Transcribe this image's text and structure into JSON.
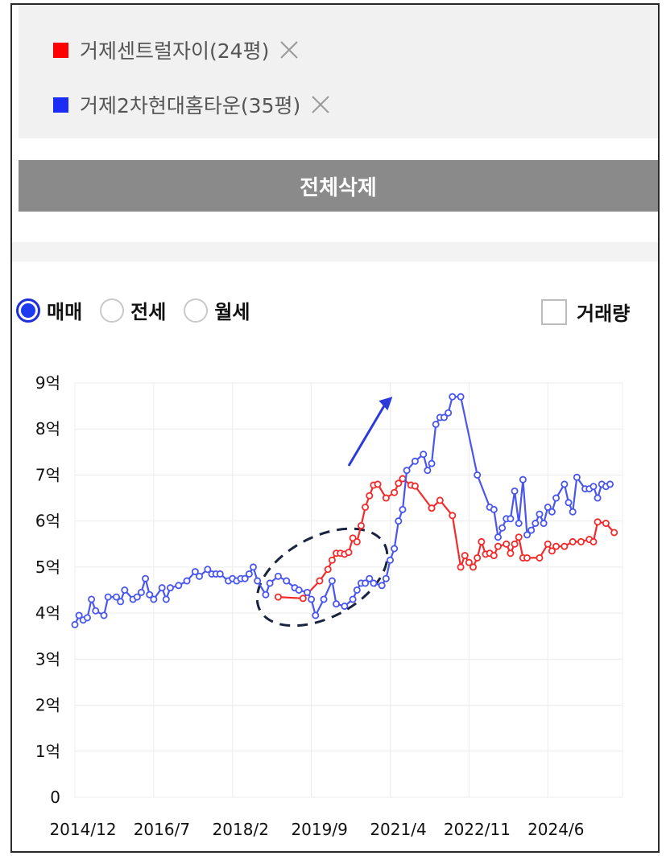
{
  "legend": {
    "items": [
      {
        "name": "거제센트럴자이(24평)",
        "color": "#ff0000"
      },
      {
        "name": "거제2차현대홈타운(35평)",
        "color": "#1a2cf5"
      }
    ]
  },
  "delete_all_label": "전체삭제",
  "trade_types": {
    "options": [
      "매매",
      "전세",
      "월세"
    ],
    "selected": "매매"
  },
  "volume_label": "거래량",
  "volume_checked": false,
  "chart_data": {
    "type": "line",
    "y_unit": "억",
    "ylim": [
      0,
      9
    ],
    "y_ticks": [
      "0",
      "1억",
      "2억",
      "3억",
      "4억",
      "5억",
      "6억",
      "7억",
      "8억",
      "9억"
    ],
    "x_ticks": [
      "2014/12",
      "2016/7",
      "2018/2",
      "2019/9",
      "2021/4",
      "2022/11",
      "2024/6"
    ],
    "xlim": [
      "2014/12",
      "2025/12"
    ],
    "grid": true,
    "annotations": [
      "dashed ellipse around 2019/2–2020/10",
      "blue upward arrow near 2020/6–2021/3"
    ],
    "series": [
      {
        "name": "거제센트럴자이(24평)",
        "color": "#f52b2b",
        "points": [
          [
            "2019/1",
            4.35
          ],
          [
            "2019/7",
            4.32
          ],
          [
            "2019/11",
            4.7
          ],
          [
            "2020/1",
            4.95
          ],
          [
            "2020/2",
            5.15
          ],
          [
            "2020/3",
            5.3
          ],
          [
            "2020/4",
            5.3
          ],
          [
            "2020/5",
            5.28
          ],
          [
            "2020/6",
            5.32
          ],
          [
            "2020/7",
            5.63
          ],
          [
            "2020/8",
            5.55
          ],
          [
            "2020/9",
            5.9
          ],
          [
            "2020/10",
            6.3
          ],
          [
            "2020/11",
            6.55
          ],
          [
            "2020/12",
            6.78
          ],
          [
            "2021/1",
            6.8
          ],
          [
            "2021/3",
            6.5
          ],
          [
            "2021/5",
            6.62
          ],
          [
            "2021/6",
            6.82
          ],
          [
            "2021/7",
            6.92
          ],
          [
            "2021/9",
            6.78
          ],
          [
            "2021/10",
            6.76
          ],
          [
            "2022/2",
            6.28
          ],
          [
            "2022/4",
            6.45
          ],
          [
            "2022/7",
            6.12
          ],
          [
            "2022/9",
            5.0
          ],
          [
            "2022/10",
            5.25
          ],
          [
            "2022/11",
            5.1
          ],
          [
            "2022/12",
            5.0
          ],
          [
            "2023/1",
            5.2
          ],
          [
            "2023/2",
            5.55
          ],
          [
            "2023/3",
            5.28
          ],
          [
            "2023/4",
            5.3
          ],
          [
            "2023/5",
            5.25
          ],
          [
            "2023/6",
            5.45
          ],
          [
            "2023/8",
            5.5
          ],
          [
            "2023/9",
            5.3
          ],
          [
            "2023/10",
            5.5
          ],
          [
            "2023/11",
            5.65
          ],
          [
            "2023/12",
            5.2
          ],
          [
            "2024/1",
            5.2
          ],
          [
            "2024/4",
            5.2
          ],
          [
            "2024/6",
            5.5
          ],
          [
            "2024/7",
            5.35
          ],
          [
            "2024/8",
            5.45
          ],
          [
            "2024/10",
            5.45
          ],
          [
            "2024/12",
            5.55
          ],
          [
            "2025/2",
            5.55
          ],
          [
            "2025/4",
            5.6
          ],
          [
            "2025/5",
            5.55
          ],
          [
            "2025/6",
            5.98
          ],
          [
            "2025/8",
            5.95
          ],
          [
            "2025/10",
            5.75
          ]
        ]
      },
      {
        "name": "거제2차현대홈타운(35평)",
        "color": "#4a56f0",
        "points": [
          [
            "2014/12",
            3.75
          ],
          [
            "2015/1",
            3.95
          ],
          [
            "2015/2",
            3.85
          ],
          [
            "2015/3",
            3.9
          ],
          [
            "2015/4",
            4.3
          ],
          [
            "2015/5",
            4.05
          ],
          [
            "2015/7",
            3.95
          ],
          [
            "2015/8",
            4.35
          ],
          [
            "2015/10",
            4.35
          ],
          [
            "2015/11",
            4.25
          ],
          [
            "2015/12",
            4.5
          ],
          [
            "2016/2",
            4.3
          ],
          [
            "2016/3",
            4.35
          ],
          [
            "2016/4",
            4.45
          ],
          [
            "2016/5",
            4.75
          ],
          [
            "2016/6",
            4.4
          ],
          [
            "2016/7",
            4.3
          ],
          [
            "2016/9",
            4.55
          ],
          [
            "2016/10",
            4.3
          ],
          [
            "2016/11",
            4.55
          ],
          [
            "2017/1",
            4.6
          ],
          [
            "2017/3",
            4.7
          ],
          [
            "2017/5",
            4.9
          ],
          [
            "2017/6",
            4.8
          ],
          [
            "2017/8",
            4.95
          ],
          [
            "2017/9",
            4.85
          ],
          [
            "2017/10",
            4.85
          ],
          [
            "2017/11",
            4.85
          ],
          [
            "2018/1",
            4.7
          ],
          [
            "2018/2",
            4.75
          ],
          [
            "2018/3",
            4.7
          ],
          [
            "2018/4",
            4.75
          ],
          [
            "2018/5",
            4.75
          ],
          [
            "2018/6",
            4.85
          ],
          [
            "2018/7",
            5.0
          ],
          [
            "2018/8",
            4.7
          ],
          [
            "2018/10",
            4.4
          ],
          [
            "2018/11",
            4.65
          ],
          [
            "2019/1",
            4.8
          ],
          [
            "2019/3",
            4.7
          ],
          [
            "2019/5",
            4.55
          ],
          [
            "2019/6",
            4.5
          ],
          [
            "2019/8",
            4.45
          ],
          [
            "2019/9",
            4.3
          ],
          [
            "2019/10",
            3.95
          ],
          [
            "2019/12",
            4.3
          ],
          [
            "2020/2",
            4.7
          ],
          [
            "2020/3",
            4.2
          ],
          [
            "2020/5",
            4.15
          ],
          [
            "2020/7",
            4.3
          ],
          [
            "2020/8",
            4.5
          ],
          [
            "2020/9",
            4.65
          ],
          [
            "2020/10",
            4.65
          ],
          [
            "2020/11",
            4.75
          ],
          [
            "2020/12",
            4.65
          ],
          [
            "2021/2",
            4.6
          ],
          [
            "2021/3",
            4.75
          ],
          [
            "2021/4",
            5.15
          ],
          [
            "2021/5",
            5.4
          ],
          [
            "2021/6",
            6.0
          ],
          [
            "2021/7",
            6.25
          ],
          [
            "2021/8",
            7.1
          ],
          [
            "2021/10",
            7.3
          ],
          [
            "2021/12",
            7.45
          ],
          [
            "2022/1",
            7.1
          ],
          [
            "2022/2",
            7.25
          ],
          [
            "2022/3",
            8.1
          ],
          [
            "2022/4",
            8.25
          ],
          [
            "2022/5",
            8.25
          ],
          [
            "2022/6",
            8.35
          ],
          [
            "2022/7",
            8.7
          ],
          [
            "2022/9",
            8.7
          ],
          [
            "2023/1",
            7.0
          ],
          [
            "2023/4",
            6.3
          ],
          [
            "2023/5",
            6.25
          ],
          [
            "2023/6",
            5.65
          ],
          [
            "2023/7",
            5.85
          ],
          [
            "2023/8",
            6.05
          ],
          [
            "2023/9",
            6.05
          ],
          [
            "2023/10",
            6.65
          ],
          [
            "2023/11",
            5.95
          ],
          [
            "2023/12",
            6.9
          ],
          [
            "2024/1",
            5.7
          ],
          [
            "2024/2",
            5.8
          ],
          [
            "2024/3",
            5.95
          ],
          [
            "2024/4",
            6.15
          ],
          [
            "2024/5",
            5.95
          ],
          [
            "2024/6",
            6.3
          ],
          [
            "2024/7",
            6.2
          ],
          [
            "2024/8",
            6.5
          ],
          [
            "2024/10",
            6.8
          ],
          [
            "2024/11",
            6.4
          ],
          [
            "2024/12",
            6.2
          ],
          [
            "2025/1",
            6.95
          ],
          [
            "2025/3",
            6.7
          ],
          [
            "2025/4",
            6.7
          ],
          [
            "2025/5",
            6.75
          ],
          [
            "2025/6",
            6.5
          ],
          [
            "2025/7",
            6.8
          ],
          [
            "2025/8",
            6.75
          ],
          [
            "2025/9",
            6.8
          ]
        ]
      }
    ]
  }
}
